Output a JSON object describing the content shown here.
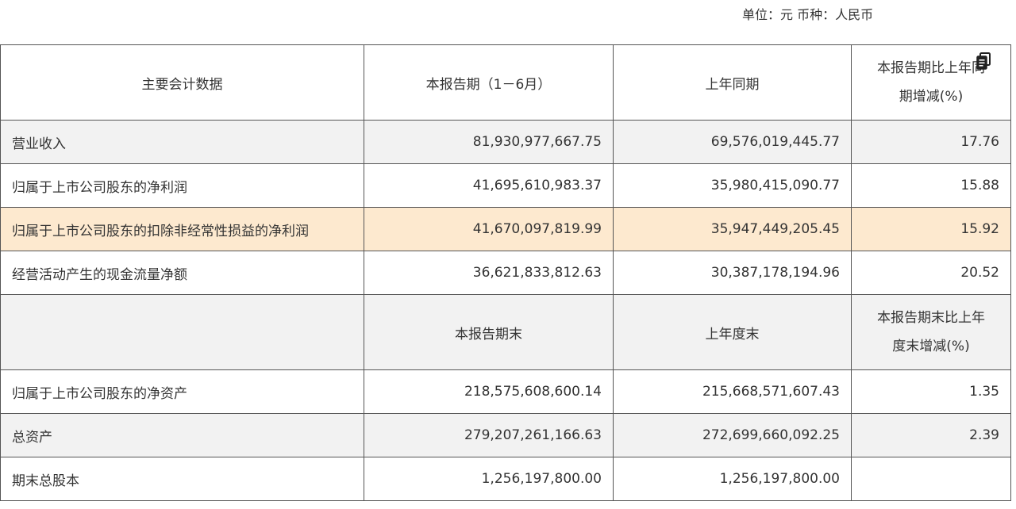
{
  "unit_note": "单位：元  币种：人民币",
  "header": {
    "col1": "主要会计数据",
    "col2": "本报告期（1－6月）",
    "col3": "上年同期",
    "col4_line1": "本报告期比上年同",
    "col4_line2": "期增减(%)"
  },
  "rows1": [
    {
      "label": "营业收入",
      "current": "81,930,977,667.75",
      "prior": "69,576,019,445.77",
      "change": "17.76"
    },
    {
      "label": "归属于上市公司股东的净利润",
      "current": "41,695,610,983.37",
      "prior": "35,980,415,090.77",
      "change": "15.88"
    },
    {
      "label": "归属于上市公司股东的扣除非经常性损益的净利润",
      "current": "41,670,097,819.99",
      "prior": "35,947,449,205.45",
      "change": "15.92"
    },
    {
      "label": "经营活动产生的现金流量净额",
      "current": "36,621,833,812.63",
      "prior": "30,387,178,194.96",
      "change": "20.52"
    }
  ],
  "subheader": {
    "col1": "",
    "col2": "本报告期末",
    "col3": "上年度末",
    "col4_line1": "本报告期末比上年",
    "col4_line2": "度末增减(%)"
  },
  "rows2": [
    {
      "label": "归属于上市公司股东的净资产",
      "current": "218,575,608,600.14",
      "prior": "215,668,571,607.43",
      "change": "1.35"
    },
    {
      "label": "总资产",
      "current": "279,207,261,166.63",
      "prior": "272,699,660,092.25",
      "change": "2.39"
    },
    {
      "label": "期末总股本",
      "current": "1,256,197,800.00",
      "prior": "1,256,197,800.00",
      "change": ""
    }
  ],
  "icons": {
    "copy": "copy-icon"
  }
}
